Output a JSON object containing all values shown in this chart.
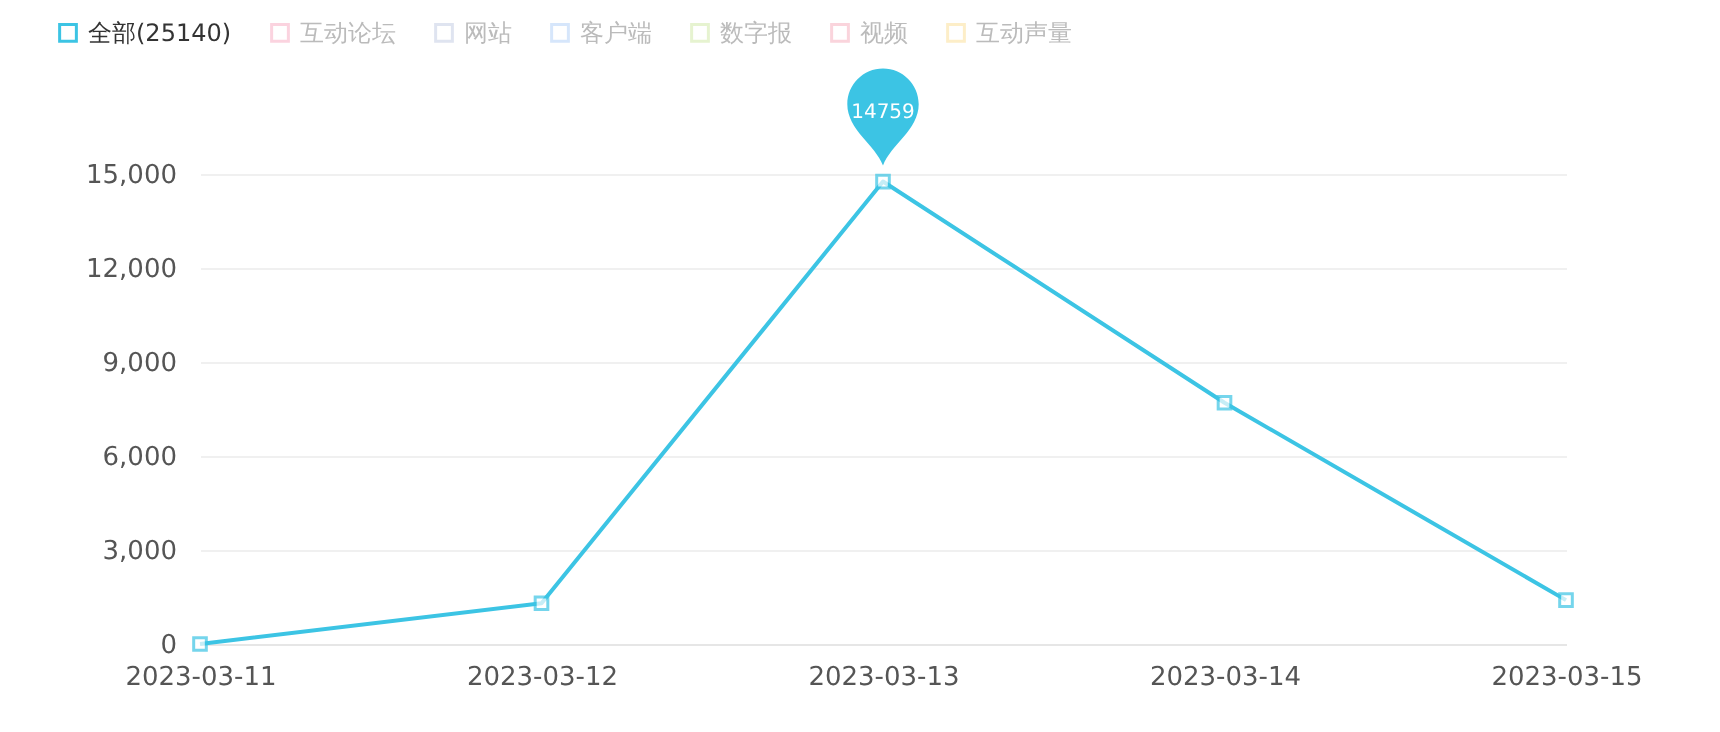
{
  "chart_data": {
    "type": "line",
    "categories": [
      "2023-03-11",
      "2023-03-12",
      "2023-03-13",
      "2023-03-14",
      "2023-03-15"
    ],
    "series": [
      {
        "name": "全部(25140)",
        "color": "#3cc4e4",
        "values": [
          0,
          1300,
          14759,
          7700,
          1400
        ],
        "value_labels": [
          null,
          null,
          "14759",
          null,
          null
        ]
      },
      {
        "name": "互动论坛",
        "color": "#fbd3df",
        "values": [
          null,
          null,
          null,
          null,
          null
        ]
      },
      {
        "name": "网站",
        "color": "#dfe4f0",
        "values": [
          null,
          null,
          null,
          null,
          null
        ]
      },
      {
        "name": "客户端",
        "color": "#d6e6fb",
        "values": [
          null,
          null,
          null,
          null,
          null
        ]
      },
      {
        "name": "数字报",
        "color": "#e6f3d0",
        "values": [
          null,
          null,
          null,
          null,
          null
        ]
      },
      {
        "name": "视频",
        "color": "#fad4dc",
        "values": [
          null,
          null,
          null,
          null,
          null
        ]
      },
      {
        "name": "互动声量",
        "color": "#fdeec8",
        "values": [
          null,
          null,
          null,
          null,
          null
        ]
      }
    ],
    "ylim": [
      0,
      15000
    ],
    "yticks": [
      0,
      {
        "value": 3000,
        "label": "3,000"
      },
      {
        "value": 6000,
        "label": "6,000"
      },
      {
        "value": 9000,
        "label": "9,000"
      },
      {
        "value": 12000,
        "label": "12,000"
      },
      {
        "value": 15000,
        "label": "15,000"
      }
    ],
    "grid": "y",
    "legend": "top left",
    "marker": "square",
    "line_style": "solid"
  }
}
